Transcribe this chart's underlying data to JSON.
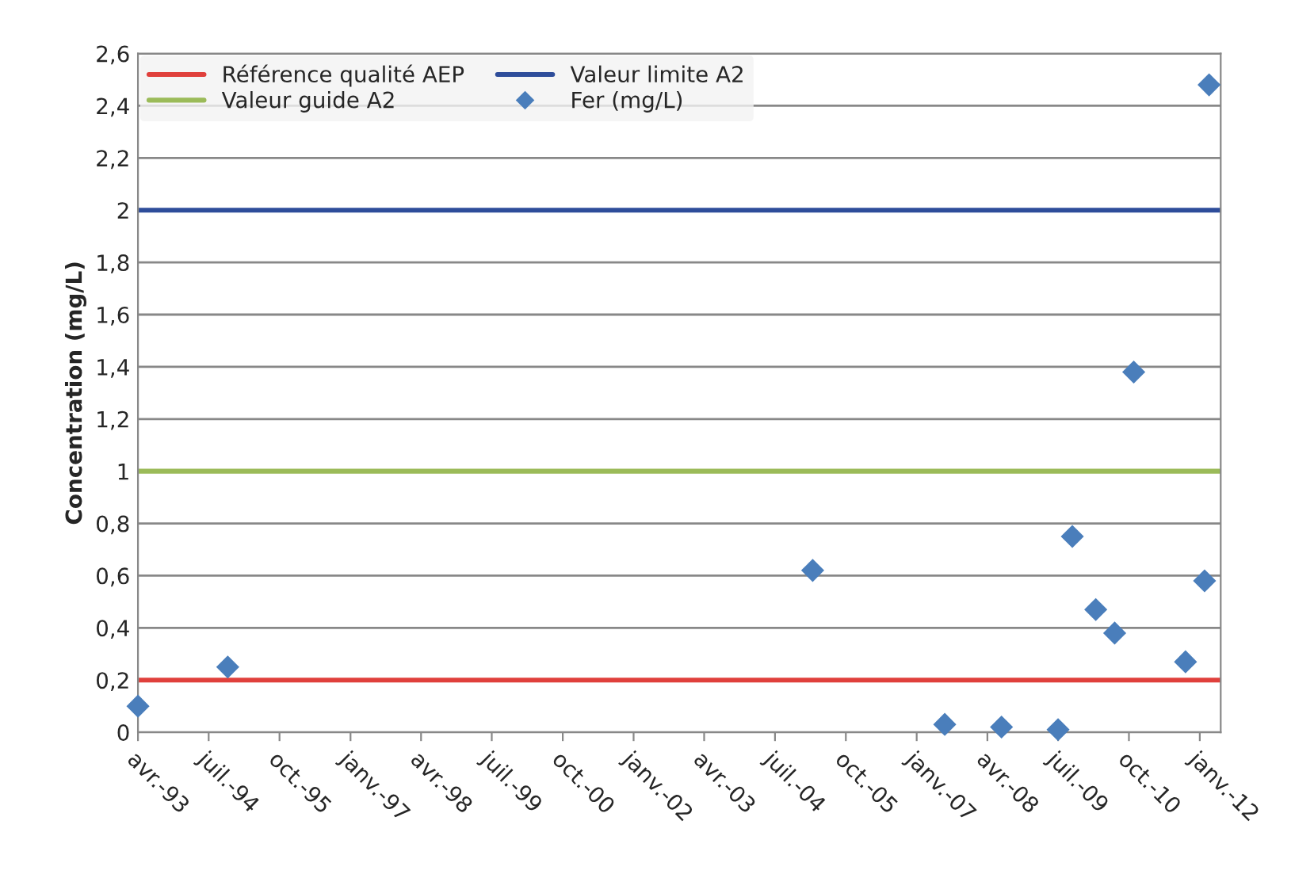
{
  "chart_data": {
    "type": "scatter",
    "ylabel": "Concentration (mg/L)",
    "x": [
      "1993-04-01",
      "1994-11-01",
      "2005-03-01",
      "2007-07-01",
      "2008-07-01",
      "2009-07-01",
      "2009-10-01",
      "2010-03-01",
      "2010-07-01",
      "2010-11-01",
      "2011-10-01",
      "2012-02-01",
      "2012-03-01"
    ],
    "series": [
      {
        "name": "Fer (mg/L)",
        "color": "#4a7ebb",
        "values": [
          0.1,
          0.25,
          0.62,
          0.03,
          0.02,
          0.01,
          0.75,
          0.47,
          0.38,
          1.38,
          0.27,
          0.58,
          2.48
        ]
      }
    ],
    "marker": "diamond",
    "ref_lines": [
      {
        "axis": "y",
        "value": 0.2,
        "label": "Référence qualité AEP",
        "color": "#e0403c"
      },
      {
        "axis": "y",
        "value": 2,
        "label": "Valeur limite A2",
        "color": "#2e4d9a"
      },
      {
        "axis": "y",
        "value": 1,
        "label": "Valeur guide A2",
        "color": "#9bbb59"
      }
    ],
    "xlim": [
      "1993-04-01",
      "2012-05-15"
    ],
    "xticks": [
      {
        "value": "1993-04-01",
        "label": "avr.-93"
      },
      {
        "value": "1994-07-01",
        "label": "juil.-94"
      },
      {
        "value": "1995-10-01",
        "label": "oct.-95"
      },
      {
        "value": "1997-01-01",
        "label": "janv.-97"
      },
      {
        "value": "1998-04-01",
        "label": "avr.-98"
      },
      {
        "value": "1999-07-01",
        "label": "juil.-99"
      },
      {
        "value": "2000-10-01",
        "label": "oct.-00"
      },
      {
        "value": "2002-01-01",
        "label": "janv.-02"
      },
      {
        "value": "2003-04-01",
        "label": "avr.-03"
      },
      {
        "value": "2004-07-01",
        "label": "juil.-04"
      },
      {
        "value": "2005-10-01",
        "label": "oct.-05"
      },
      {
        "value": "2007-01-01",
        "label": "janv.-07"
      },
      {
        "value": "2008-04-01",
        "label": "avr.-08"
      },
      {
        "value": "2009-07-01",
        "label": "juil.-09"
      },
      {
        "value": "2010-10-01",
        "label": "oct.-10"
      },
      {
        "value": "2012-01-01",
        "label": "janv.-12"
      }
    ],
    "ylim": [
      0,
      2.6
    ],
    "yticks": [
      {
        "value": 0,
        "label": "0"
      },
      {
        "value": 0.2,
        "label": "0,2"
      },
      {
        "value": 0.4,
        "label": "0,4"
      },
      {
        "value": 0.6,
        "label": "0,6"
      },
      {
        "value": 0.8,
        "label": "0,8"
      },
      {
        "value": 1,
        "label": "1"
      },
      {
        "value": 1.2,
        "label": "1,2"
      },
      {
        "value": 1.4,
        "label": "1,4"
      },
      {
        "value": 1.6,
        "label": "1,6"
      },
      {
        "value": 1.8,
        "label": "1,8"
      },
      {
        "value": 2,
        "label": "2"
      },
      {
        "value": 2.2,
        "label": "2,2"
      },
      {
        "value": 2.4,
        "label": "2,4"
      },
      {
        "value": 2.6,
        "label": "2,6"
      }
    ],
    "grid": "y",
    "legend": "top left"
  }
}
